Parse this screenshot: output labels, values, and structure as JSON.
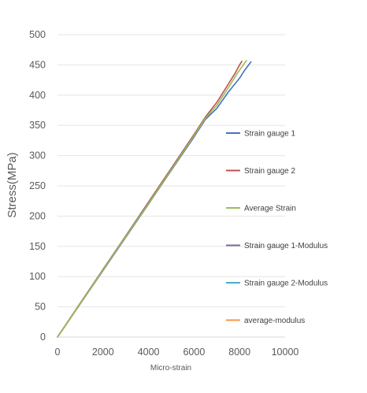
{
  "chart_data": {
    "type": "line",
    "title": "",
    "xlabel": "Micro-strain",
    "ylabel": "Stress(MPa)",
    "xlim": [
      0,
      10000
    ],
    "ylim": [
      0,
      500
    ],
    "xticks": [
      0,
      2000,
      4000,
      6000,
      8000,
      10000
    ],
    "yticks": [
      0,
      50,
      100,
      150,
      200,
      250,
      300,
      350,
      400,
      450,
      500
    ],
    "xtick_labels": [
      "0",
      "2000",
      "4000",
      "6000",
      "8000",
      "10000"
    ],
    "ytick_labels": [
      "0",
      "50",
      "100",
      "150",
      "200",
      "250",
      "300",
      "350",
      "400",
      "450",
      "500"
    ],
    "grid": "horizontal",
    "legend_position": "right",
    "series": [
      {
        "name": "Strain gauge 1",
        "color": "#4472c4",
        "points": [
          [
            0,
            0
          ],
          [
            1000,
            55
          ],
          [
            2000,
            110
          ],
          [
            3000,
            165
          ],
          [
            4000,
            220
          ],
          [
            5000,
            276
          ],
          [
            6000,
            331
          ],
          [
            6500,
            360
          ],
          [
            7000,
            378
          ],
          [
            7500,
            405
          ],
          [
            8000,
            428
          ],
          [
            8200,
            440
          ],
          [
            8400,
            450
          ],
          [
            8500,
            455
          ]
        ]
      },
      {
        "name": "Strain gauge 2",
        "color": "#c0504d",
        "points": [
          [
            0,
            0
          ],
          [
            1000,
            56
          ],
          [
            2000,
            112
          ],
          [
            3000,
            167
          ],
          [
            4000,
            223
          ],
          [
            5000,
            279
          ],
          [
            6000,
            335
          ],
          [
            6500,
            364
          ],
          [
            7000,
            388
          ],
          [
            7400,
            412
          ],
          [
            7800,
            436
          ],
          [
            8000,
            450
          ],
          [
            8100,
            456
          ]
        ]
      },
      {
        "name": "Average Strain",
        "color": "#9bbb59",
        "points": [
          [
            0,
            0
          ],
          [
            1000,
            55
          ],
          [
            2000,
            111
          ],
          [
            3000,
            166
          ],
          [
            4000,
            221
          ],
          [
            5000,
            277
          ],
          [
            6000,
            333
          ],
          [
            6500,
            362
          ],
          [
            7000,
            383
          ],
          [
            7500,
            412
          ],
          [
            7900,
            436
          ],
          [
            8200,
            452
          ],
          [
            8300,
            457
          ]
        ]
      },
      {
        "name": "Strain gauge 1-Modulus",
        "color": "#8064a2",
        "points": [
          [
            0,
            0
          ],
          [
            6000,
            331
          ]
        ]
      },
      {
        "name": "Strain gauge 2-Modulus",
        "color": "#4bacc6",
        "points": [
          [
            0,
            0
          ],
          [
            6000,
            335
          ]
        ]
      },
      {
        "name": "average-modulus",
        "color": "#f79646",
        "points": [
          [
            0,
            0
          ],
          [
            6400,
            355
          ]
        ]
      }
    ]
  }
}
